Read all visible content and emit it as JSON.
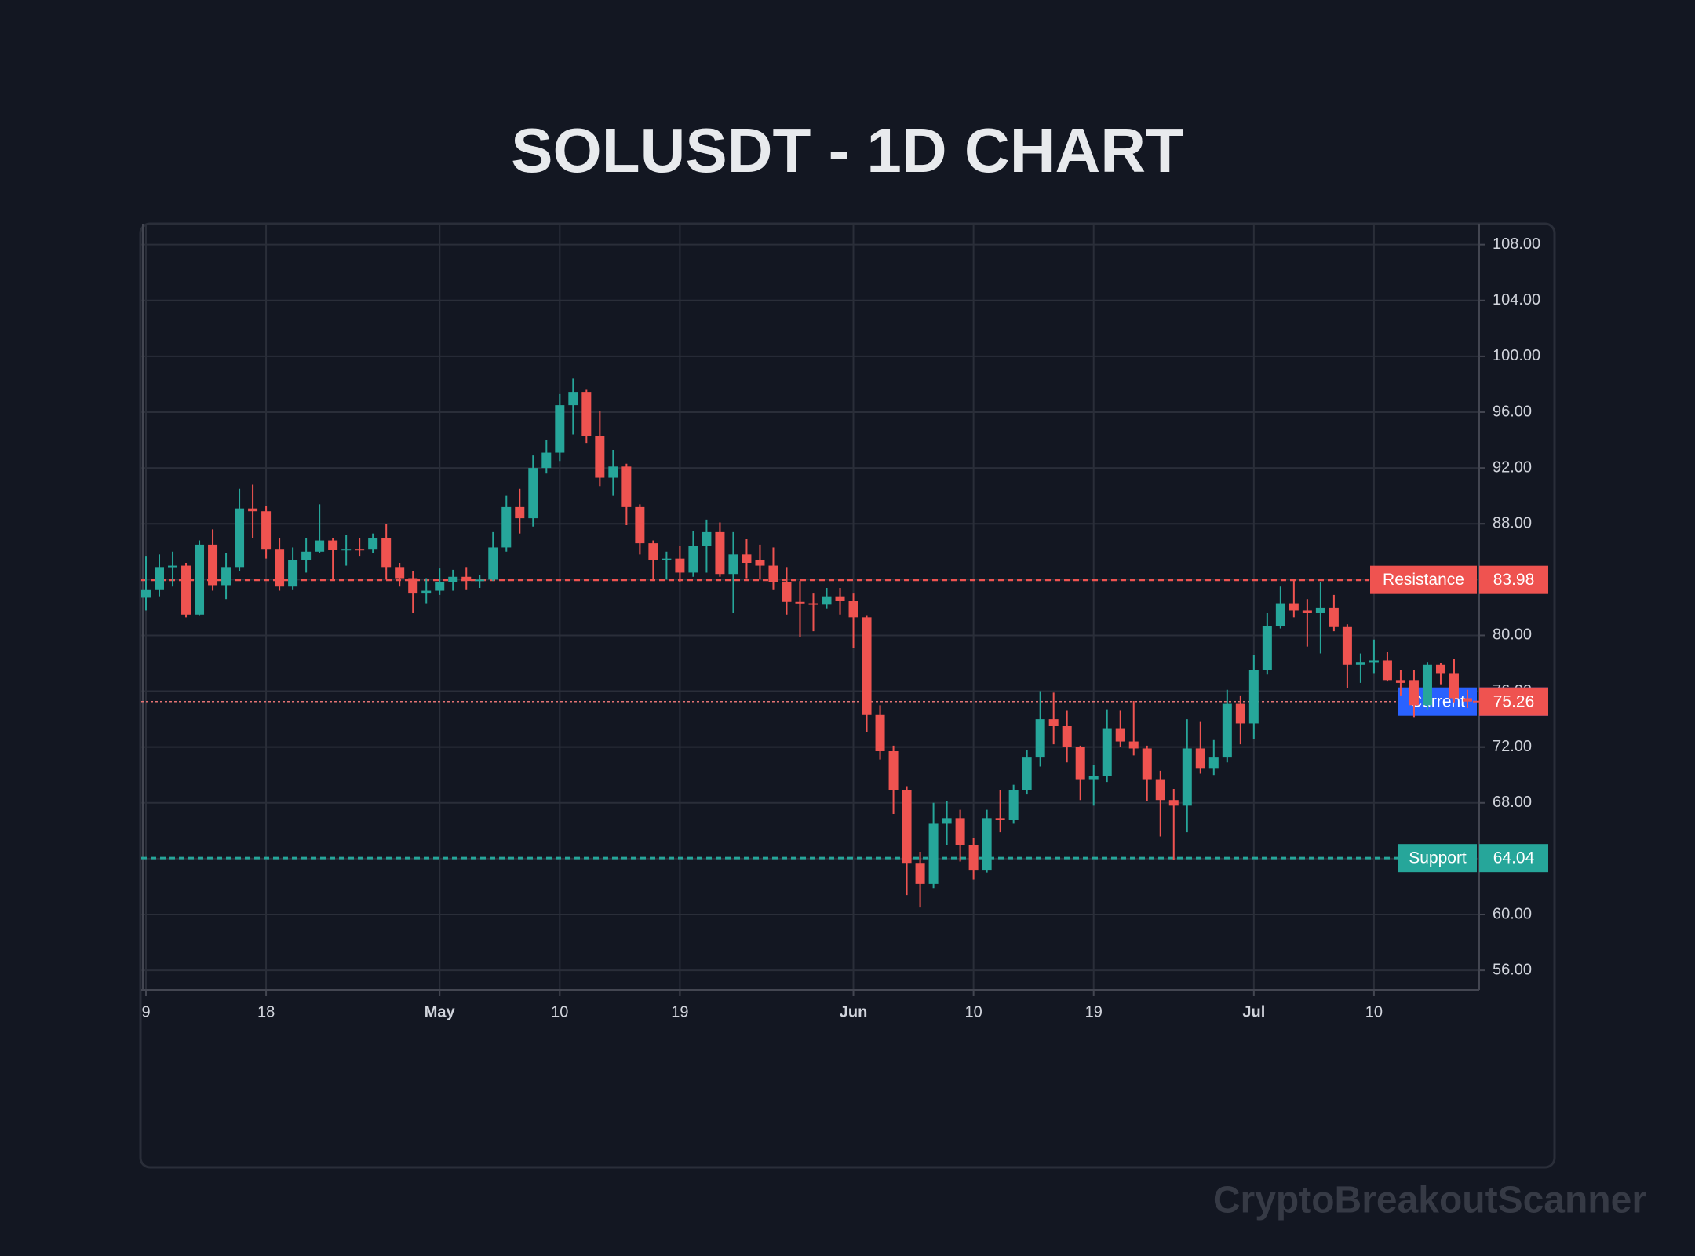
{
  "chart_data": {
    "type": "candlestick",
    "title": "SOLUSDT - 1D CHART",
    "watermark": "CryptoBreakoutScanner",
    "up_color": "#26a69a",
    "down_color": "#ef5350",
    "grid": true,
    "x": [
      "04-09",
      "04-10",
      "04-11",
      "04-12",
      "04-13",
      "04-14",
      "04-15",
      "04-16",
      "04-17",
      "04-18",
      "04-19",
      "04-20",
      "04-21",
      "04-22",
      "04-23",
      "04-24",
      "04-25",
      "04-26",
      "04-27",
      "04-28",
      "04-29",
      "04-30",
      "05-01",
      "05-02",
      "05-03",
      "05-04",
      "05-05",
      "05-06",
      "05-07",
      "05-08",
      "05-09",
      "05-10",
      "05-11",
      "05-12",
      "05-13",
      "05-14",
      "05-15",
      "05-16",
      "05-17",
      "05-18",
      "05-19",
      "05-20",
      "05-21",
      "05-22",
      "05-23",
      "05-24",
      "05-25",
      "05-26",
      "05-27",
      "05-28",
      "05-29",
      "05-30",
      "05-31",
      "06-01",
      "06-02",
      "06-03",
      "06-04",
      "06-05",
      "06-06",
      "06-07",
      "06-08",
      "06-09",
      "06-10",
      "06-11",
      "06-12",
      "06-13",
      "06-14",
      "06-15",
      "06-16",
      "06-17",
      "06-18",
      "06-19",
      "06-20",
      "06-21",
      "06-22",
      "06-23",
      "06-24",
      "06-25",
      "06-26",
      "06-27",
      "06-28",
      "06-29",
      "06-30",
      "07-01",
      "07-02",
      "07-03",
      "07-04",
      "07-05",
      "07-06",
      "07-07",
      "07-08",
      "07-09",
      "07-10",
      "07-11",
      "07-12",
      "07-13",
      "07-14",
      "07-15",
      "07-16",
      "07-17"
    ],
    "open": [
      82.7,
      83.3,
      84.9,
      85.0,
      81.5,
      86.5,
      83.6,
      84.9,
      89.1,
      88.9,
      86.2,
      83.5,
      85.4,
      86.0,
      86.8,
      86.1,
      86.2,
      86.2,
      87.0,
      84.9,
      84.1,
      83.0,
      83.2,
      83.8,
      84.2,
      83.9,
      84.0,
      86.3,
      89.2,
      88.4,
      92.0,
      93.1,
      96.5,
      97.4,
      94.3,
      91.3,
      92.1,
      89.2,
      86.6,
      85.4,
      85.5,
      84.5,
      86.4,
      87.4,
      84.4,
      85.8,
      85.4,
      85.0,
      83.8,
      82.4,
      82.3,
      82.2,
      82.8,
      82.5,
      81.3,
      74.3,
      71.7,
      68.9,
      63.7,
      62.2,
      66.5,
      66.9,
      65.0,
      63.2,
      66.9,
      66.8,
      68.9,
      71.3,
      74.0,
      73.5,
      72.0,
      69.7,
      69.9,
      73.3,
      72.4,
      71.9,
      69.7,
      68.2,
      67.8,
      71.9,
      70.5,
      71.3,
      75.1,
      73.7,
      77.5,
      80.7,
      82.3,
      81.8,
      81.6,
      82.0,
      80.6,
      77.9,
      78.1,
      78.2,
      76.8,
      76.8,
      75.0,
      77.9,
      77.3,
      75.5
    ],
    "high": [
      85.7,
      85.8,
      86.0,
      85.2,
      86.8,
      87.6,
      85.9,
      90.5,
      90.8,
      89.3,
      87.0,
      86.3,
      87.0,
      89.4,
      87.0,
      87.2,
      87.0,
      87.3,
      88.0,
      85.2,
      84.6,
      84.1,
      84.8,
      84.7,
      84.9,
      84.3,
      87.4,
      90.0,
      90.5,
      92.9,
      94.0,
      97.3,
      98.4,
      97.6,
      96.1,
      93.3,
      92.3,
      89.4,
      86.8,
      86.0,
      86.4,
      87.5,
      88.3,
      88.1,
      87.4,
      86.9,
      86.5,
      86.3,
      84.9,
      83.9,
      83.0,
      83.4,
      83.4,
      83.0,
      81.4,
      75.0,
      72.1,
      69.2,
      64.5,
      68.0,
      68.1,
      67.5,
      65.5,
      67.5,
      68.9,
      69.3,
      71.8,
      76.0,
      75.9,
      74.6,
      72.1,
      70.7,
      74.7,
      74.6,
      75.3,
      72.1,
      70.3,
      69.0,
      74.0,
      73.8,
      72.5,
      76.1,
      75.7,
      78.6,
      81.6,
      83.5,
      84.0,
      82.6,
      83.8,
      82.9,
      80.8,
      78.7,
      79.7,
      78.8,
      77.5,
      77.5,
      78.1,
      78.0,
      78.3,
      76.1
    ],
    "low": [
      81.8,
      82.8,
      83.5,
      81.3,
      81.4,
      83.2,
      82.6,
      84.6,
      87.0,
      85.5,
      83.2,
      83.3,
      84.5,
      85.9,
      84.0,
      85.0,
      85.7,
      85.9,
      84.0,
      83.5,
      81.6,
      82.3,
      82.9,
      83.2,
      83.3,
      83.4,
      83.9,
      86.0,
      87.3,
      87.8,
      91.6,
      92.5,
      94.4,
      93.8,
      90.7,
      90.0,
      87.9,
      85.8,
      83.9,
      84.0,
      83.8,
      84.2,
      84.5,
      84.2,
      81.6,
      84.1,
      84.0,
      83.3,
      81.5,
      79.9,
      80.3,
      81.9,
      81.5,
      79.1,
      73.1,
      71.1,
      67.2,
      61.4,
      60.5,
      61.9,
      65.0,
      63.8,
      62.5,
      63.0,
      65.9,
      66.5,
      68.6,
      70.6,
      72.2,
      70.9,
      68.2,
      67.8,
      69.5,
      72.0,
      71.4,
      68.1,
      65.6,
      63.9,
      65.9,
      70.1,
      70.0,
      70.9,
      72.2,
      72.6,
      77.2,
      80.5,
      81.3,
      79.2,
      78.7,
      80.3,
      76.2,
      76.6,
      77.3,
      76.7,
      75.7,
      74.1,
      74.7,
      76.5,
      75.2,
      74.8
    ],
    "close": [
      83.3,
      84.9,
      85.0,
      81.5,
      86.5,
      83.6,
      84.9,
      89.1,
      88.9,
      86.2,
      83.5,
      85.4,
      86.0,
      86.8,
      86.1,
      86.2,
      86.1,
      87.0,
      84.9,
      84.1,
      83.0,
      83.2,
      83.8,
      84.2,
      83.9,
      84.0,
      86.3,
      89.2,
      88.4,
      92.0,
      93.1,
      96.5,
      97.4,
      94.3,
      91.3,
      92.1,
      89.2,
      86.6,
      85.4,
      85.5,
      84.5,
      86.4,
      87.4,
      84.4,
      85.8,
      85.2,
      85.0,
      83.8,
      82.4,
      82.3,
      82.2,
      82.8,
      82.5,
      81.3,
      74.3,
      71.7,
      68.9,
      63.7,
      62.2,
      66.5,
      66.9,
      65.0,
      63.2,
      66.9,
      66.8,
      68.9,
      71.3,
      74.0,
      73.5,
      72.0,
      69.7,
      69.9,
      73.3,
      72.4,
      71.9,
      69.7,
      68.2,
      67.8,
      71.9,
      70.5,
      71.3,
      75.1,
      73.7,
      77.5,
      80.7,
      82.3,
      81.8,
      81.6,
      82.0,
      80.6,
      77.9,
      78.1,
      78.2,
      76.8,
      76.6,
      75.0,
      77.9,
      77.3,
      75.5,
      75.26
    ],
    "ylim": [
      54.6,
      109.5
    ],
    "yticks": [
      {
        "value": 56,
        "label": "56.00"
      },
      {
        "value": 60,
        "label": "60.00"
      },
      {
        "value": 64,
        "label": "64.00"
      },
      {
        "value": 68,
        "label": "68.00"
      },
      {
        "value": 72,
        "label": "72.00"
      },
      {
        "value": 76,
        "label": "76.00"
      },
      {
        "value": 80,
        "label": "80.00"
      },
      {
        "value": 84,
        "label": "84.00"
      },
      {
        "value": 88,
        "label": "88.00"
      },
      {
        "value": 92,
        "label": "92.00"
      },
      {
        "value": 96,
        "label": "96.00"
      },
      {
        "value": 100,
        "label": "100.00"
      },
      {
        "value": 104,
        "label": "104.00"
      },
      {
        "value": 108,
        "label": "108.00"
      }
    ],
    "xticks": [
      {
        "value": "04-09",
        "label": "9"
      },
      {
        "value": "04-18",
        "label": "18"
      },
      {
        "value": "05-01",
        "label": "May"
      },
      {
        "value": "05-10",
        "label": "10"
      },
      {
        "value": "05-19",
        "label": "19"
      },
      {
        "value": "06-01",
        "label": "Jun"
      },
      {
        "value": "06-10",
        "label": "10"
      },
      {
        "value": "06-19",
        "label": "19"
      },
      {
        "value": "07-01",
        "label": "Jul"
      },
      {
        "value": "07-10",
        "label": "10"
      }
    ],
    "levels": [
      {
        "name": "Resistance",
        "value": 83.98,
        "color": "#ef5350"
      },
      {
        "name": "Support",
        "value": 64.04,
        "color": "#26a69a"
      },
      {
        "name": "Current",
        "value": 75.26,
        "color": "#2962ff"
      }
    ]
  }
}
